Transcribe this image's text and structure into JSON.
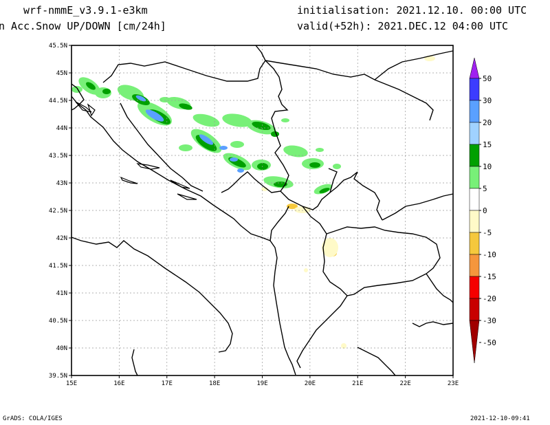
{
  "header": {
    "model": "wrf-nmmE_v3.9.1-e3km",
    "field": "n Acc.Snow UP/DOWN [cm/24h]",
    "init": "initialisation: 2021.12.10.  00:00 UTC",
    "valid": "valid(+52h): 2021.DEC.12 04:00 UTC"
  },
  "footer": {
    "credit": "GrADS: COLA/IGES",
    "timestamp": "2021-12-10-09:41"
  },
  "map": {
    "lon_labels": [
      "15E",
      "16E",
      "17E",
      "18E",
      "19E",
      "20E",
      "21E",
      "22E",
      "23E"
    ],
    "lat_labels": [
      "45.5N",
      "45N",
      "44.5N",
      "44N",
      "43.5N",
      "43N",
      "42.5N",
      "42N",
      "41.5N",
      "41N",
      "40.5N",
      "40N",
      "39.5N"
    ]
  },
  "colorbar": {
    "labels": [
      "50",
      "30",
      "20",
      "15",
      "10",
      "5",
      "0",
      "-5",
      "-10",
      "-15",
      "-20",
      "-30",
      "-50"
    ],
    "colors": [
      "#a020f0",
      "#3c3cff",
      "#5aa0ff",
      "#a0d2ff",
      "#00a000",
      "#78f078",
      "#ffffff",
      "#fffac8",
      "#f5c83c",
      "#f5963c",
      "#f50000",
      "#c80000",
      "#a00000"
    ]
  }
}
